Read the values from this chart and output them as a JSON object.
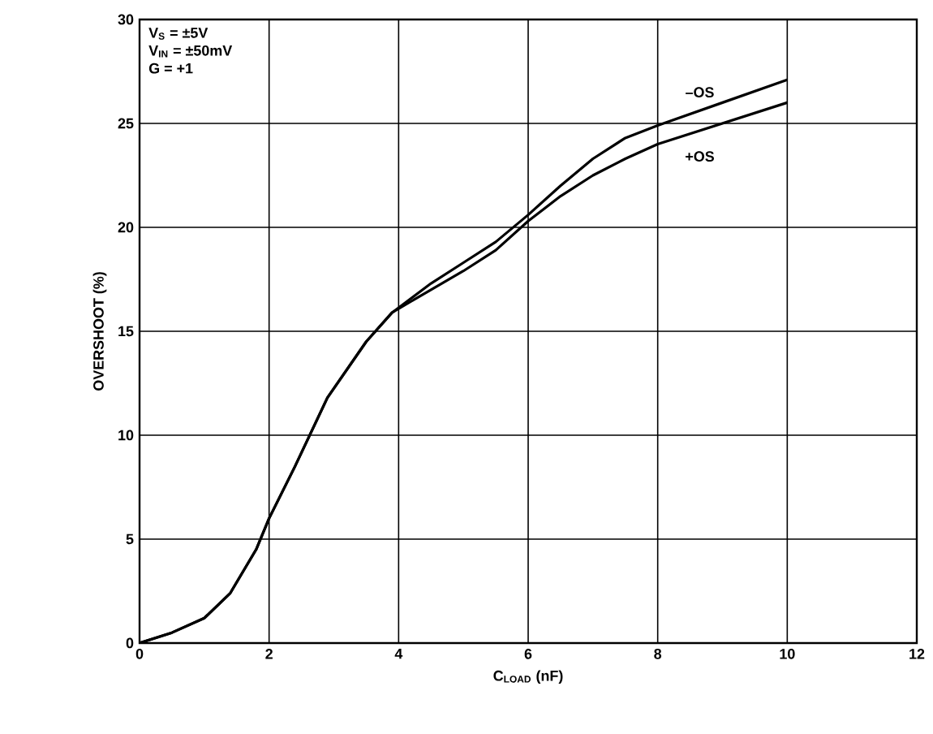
{
  "chart_data": {
    "type": "line",
    "xlabel": "C$_{LOAD}$ (nF)",
    "ylabel": "OVERSHOOT (%)",
    "annotations": [
      "V$_{S}$ = ±5V",
      "V$_{IN}$ = ±50mV",
      "G = +1"
    ],
    "series": [
      {
        "name": "–OS",
        "color": "#000000",
        "x": [
          0,
          0.5,
          1,
          1.4,
          1.8,
          2,
          2.4,
          2.9,
          3.5,
          3.9,
          4.5,
          5,
          5.5,
          6,
          6.5,
          7,
          7.5,
          8,
          9,
          10
        ],
        "values": [
          0,
          0.5,
          1.2,
          2.4,
          4.5,
          6,
          8.5,
          11.8,
          14.5,
          15.9,
          17.3,
          18.3,
          19.3,
          20.6,
          22,
          23.3,
          24.3,
          24.9,
          26,
          27.1
        ]
      },
      {
        "name": "+OS",
        "color": "#000000",
        "x": [
          0,
          0.5,
          1,
          1.4,
          1.8,
          2,
          2.4,
          2.9,
          3.5,
          3.9,
          4.5,
          5,
          5.5,
          6,
          6.5,
          7,
          7.5,
          8,
          9,
          10
        ],
        "values": [
          0,
          0.5,
          1.2,
          2.4,
          4.5,
          6,
          8.5,
          11.8,
          14.5,
          15.9,
          17,
          17.9,
          18.9,
          20.3,
          21.5,
          22.5,
          23.3,
          24,
          25,
          26
        ]
      }
    ],
    "xlim": [
      0,
      12
    ],
    "ylim": [
      0,
      30
    ],
    "xticks": [
      0,
      2,
      4,
      6,
      8,
      10,
      12
    ],
    "yticks": [
      0,
      5,
      10,
      15,
      20,
      25,
      30
    ],
    "grid": true,
    "marker": "none",
    "line_style": "solid"
  }
}
